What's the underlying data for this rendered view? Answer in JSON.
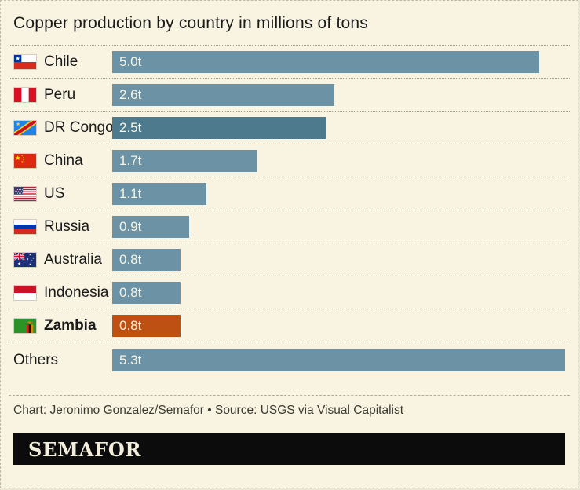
{
  "title": "Copper production by country in millions of tons",
  "chart_data": {
    "type": "bar",
    "orientation": "horizontal",
    "title": "Copper production by country in millions of tons",
    "unit": "millions of tons",
    "xlim": [
      0,
      5.3
    ],
    "categories": [
      "Chile",
      "Peru",
      "DR Congo",
      "China",
      "US",
      "Russia",
      "Australia",
      "Indonesia",
      "Zambia",
      "Others"
    ],
    "values": [
      5.0,
      2.6,
      2.5,
      1.7,
      1.1,
      0.9,
      0.8,
      0.8,
      0.8,
      5.3
    ],
    "rows": [
      {
        "label": "Chile",
        "value": 5.0,
        "value_label": "5.0t",
        "flag": "chile-flag",
        "bar_color": "#6b92a5",
        "label_bold": false
      },
      {
        "label": "Peru",
        "value": 2.6,
        "value_label": "2.6t",
        "flag": "peru-flag",
        "bar_color": "#6b92a5",
        "label_bold": false
      },
      {
        "label": "DR Congo",
        "value": 2.5,
        "value_label": "2.5t",
        "flag": "dr-congo-flag",
        "bar_color": "#4d7b8d",
        "label_bold": false
      },
      {
        "label": "China",
        "value": 1.7,
        "value_label": "1.7t",
        "flag": "china-flag",
        "bar_color": "#6b92a5",
        "label_bold": false
      },
      {
        "label": "US",
        "value": 1.1,
        "value_label": "1.1t",
        "flag": "us-flag",
        "bar_color": "#6b92a5",
        "label_bold": false
      },
      {
        "label": "Russia",
        "value": 0.9,
        "value_label": "0.9t",
        "flag": "russia-flag",
        "bar_color": "#6b92a5",
        "label_bold": false
      },
      {
        "label": "Australia",
        "value": 0.8,
        "value_label": "0.8t",
        "flag": "australia-flag",
        "bar_color": "#6b92a5",
        "label_bold": false
      },
      {
        "label": "Indonesia",
        "value": 0.8,
        "value_label": "0.8t",
        "flag": "indonesia-flag",
        "bar_color": "#6b92a5",
        "label_bold": false
      },
      {
        "label": "Zambia",
        "value": 0.8,
        "value_label": "0.8t",
        "flag": "zambia-flag",
        "bar_color": "#bf5014",
        "label_bold": true
      },
      {
        "label": "Others",
        "value": 5.3,
        "value_label": "5.3t",
        "flag": null,
        "bar_color": "#6b92a5",
        "label_bold": false
      }
    ]
  },
  "footer": {
    "credit": "Chart: Jeronimo Gonzalez/Semafor • Source: USGS via Visual Capitalist",
    "logo_text": "SEMAFOR"
  },
  "colors": {
    "background": "#f8f4e1",
    "bar_default": "#6b92a5",
    "bar_highlight_drcongo": "#4d7b8d",
    "bar_highlight_zambia": "#bf5014",
    "bar_value_text": "#f8f4e1",
    "text": "#1a1a1a",
    "credit_text": "#3c3b33",
    "logo_background": "#0c0c0c",
    "logo_text": "#f3eedb"
  }
}
